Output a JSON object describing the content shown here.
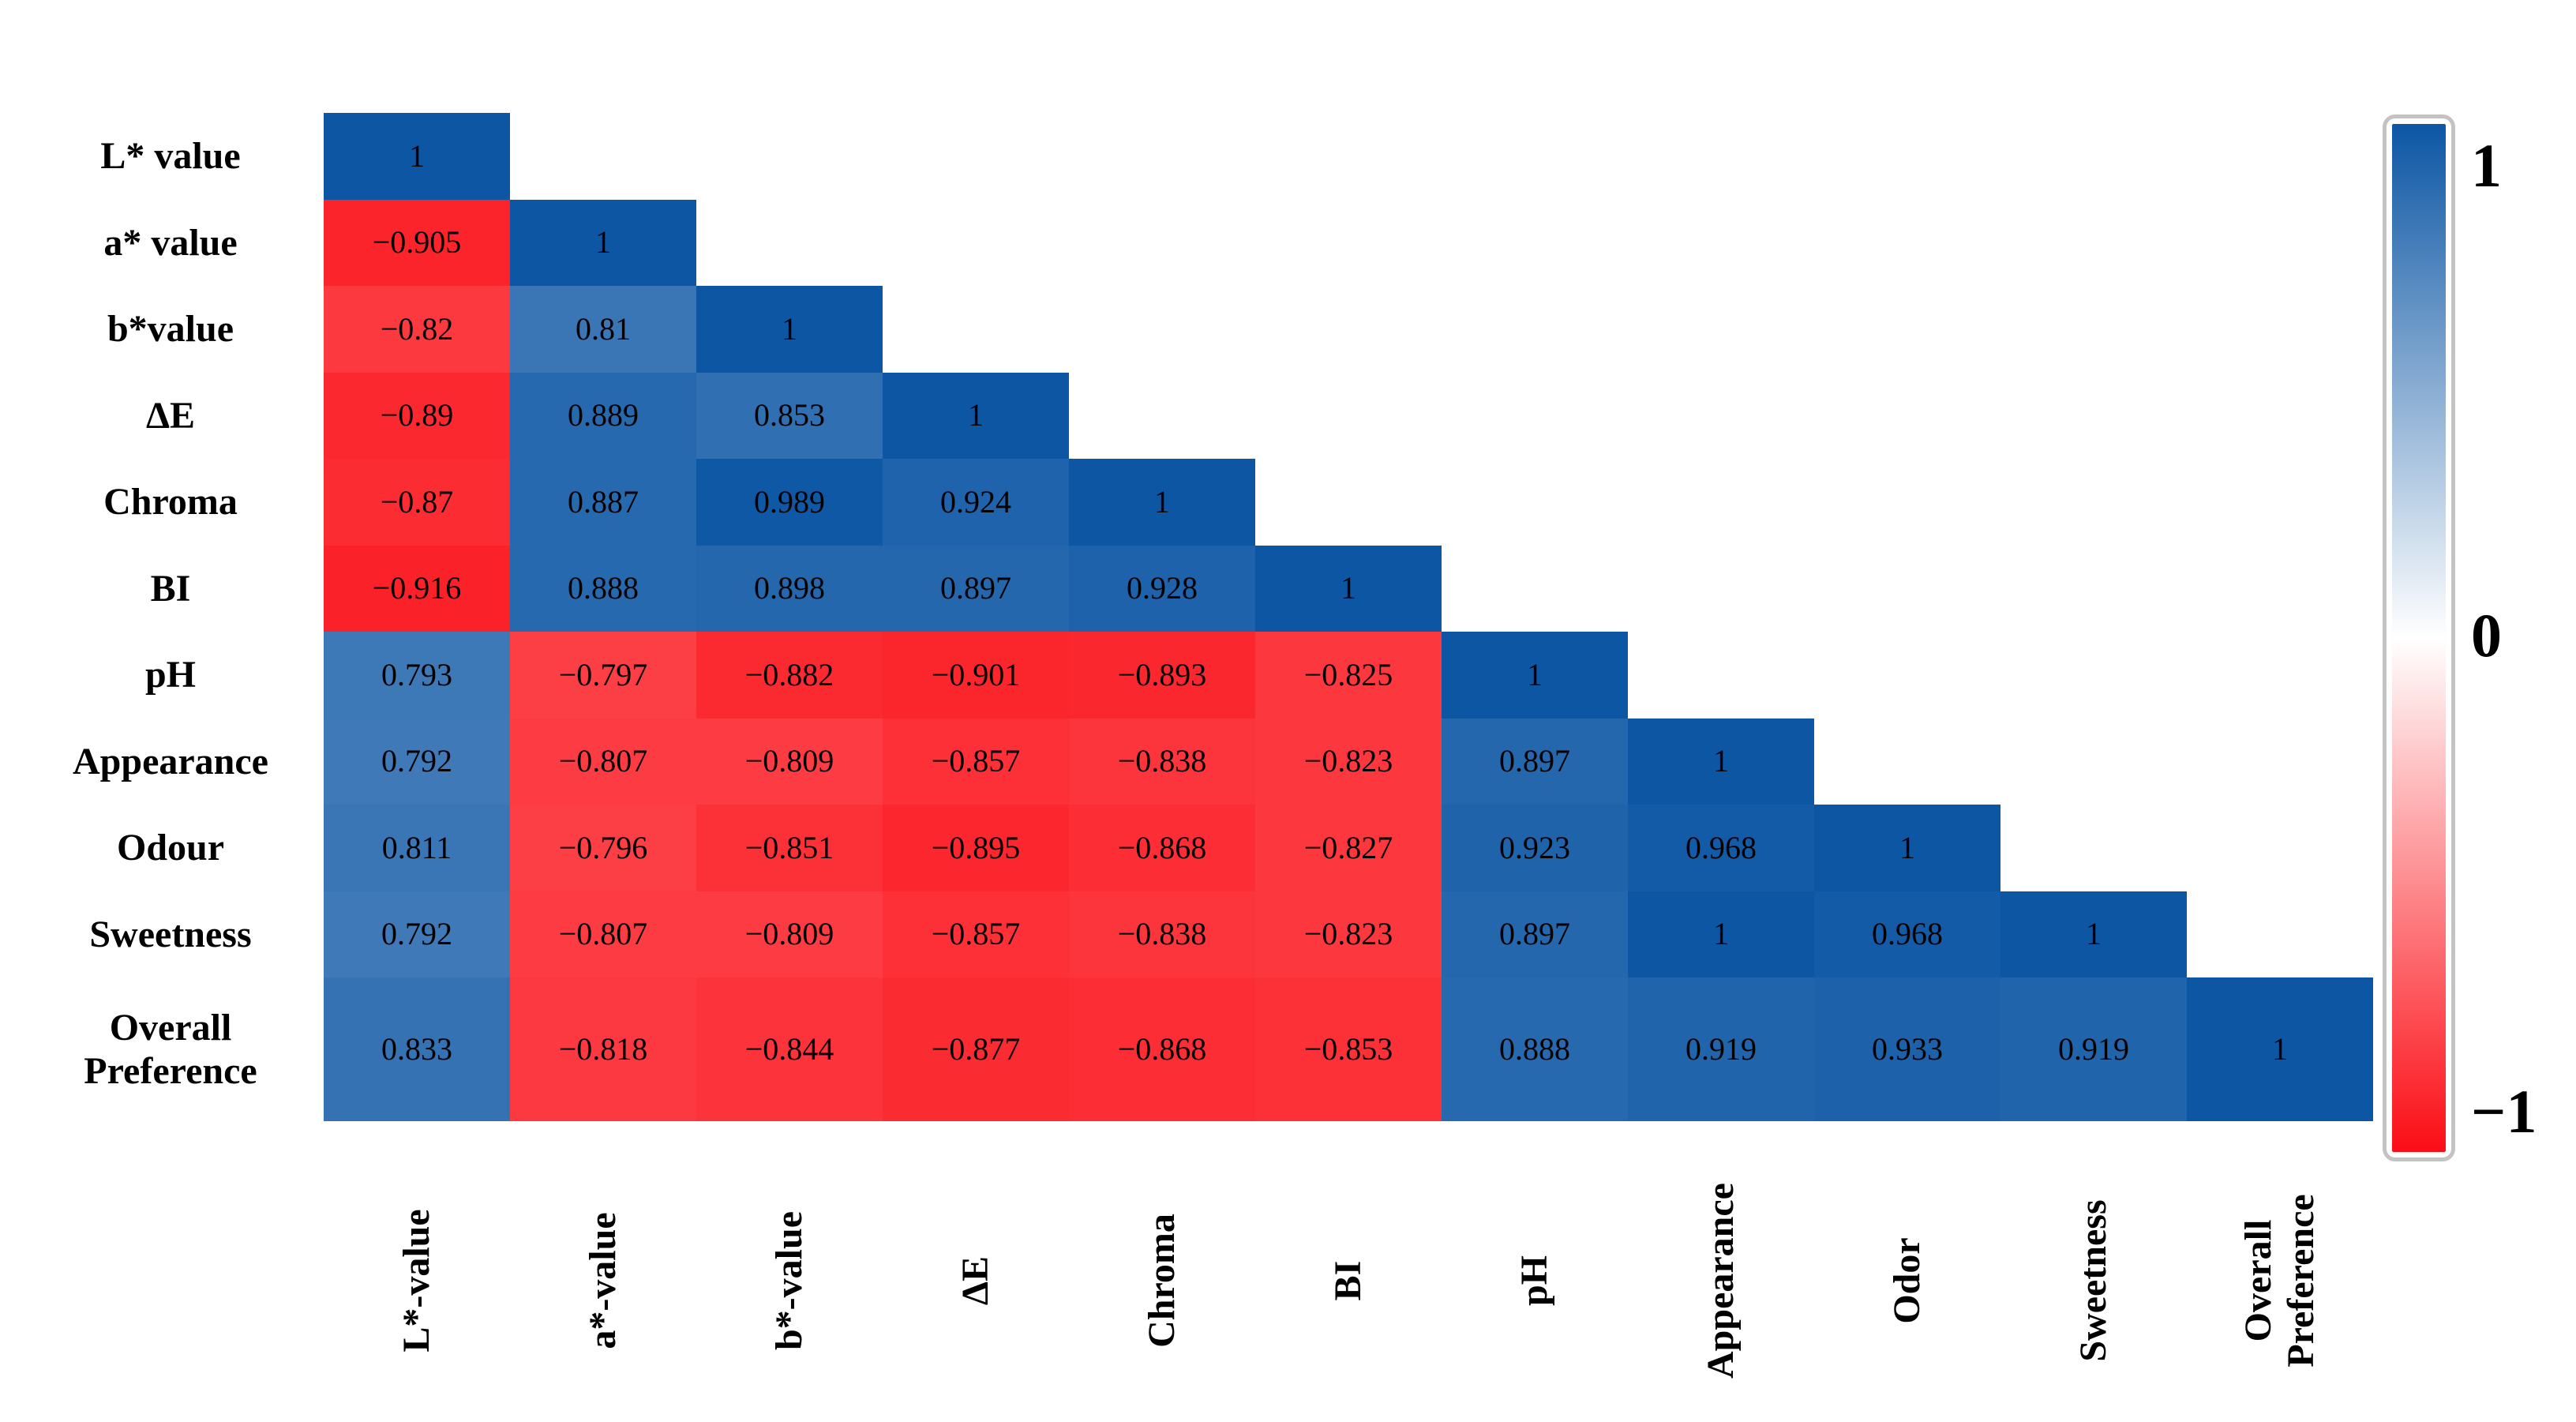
{
  "chart_data": {
    "type": "heatmap",
    "subtype": "lower-triangular correlation matrix",
    "row_labels": [
      "L* value",
      "a* value",
      "b*value",
      "ΔE",
      "Chroma",
      "BI",
      "pH",
      "Appearance",
      "Odour",
      "Sweetness",
      "Overall\nPreference"
    ],
    "col_labels": [
      "L*-value",
      "a*-value",
      "b*-value",
      "ΔE",
      "Chroma",
      "BI",
      "pH",
      "Appearance",
      "Odor",
      "Sweetness",
      "Overall\nPreference"
    ],
    "matrix": [
      [
        1
      ],
      [
        -0.905,
        1
      ],
      [
        -0.82,
        0.81,
        1
      ],
      [
        -0.89,
        0.889,
        0.853,
        1
      ],
      [
        -0.87,
        0.887,
        0.989,
        0.924,
        1
      ],
      [
        -0.916,
        0.888,
        0.898,
        0.897,
        0.928,
        1
      ],
      [
        0.793,
        -0.797,
        -0.882,
        -0.901,
        -0.893,
        -0.825,
        1
      ],
      [
        0.792,
        -0.807,
        -0.809,
        -0.857,
        -0.838,
        -0.823,
        0.897,
        1
      ],
      [
        0.811,
        -0.796,
        -0.851,
        -0.895,
        -0.868,
        -0.827,
        0.923,
        0.968,
        1
      ],
      [
        0.792,
        -0.807,
        -0.809,
        -0.857,
        -0.838,
        -0.823,
        0.897,
        1,
        0.968,
        1
      ],
      [
        0.833,
        -0.818,
        -0.844,
        -0.877,
        -0.868,
        -0.853,
        0.888,
        0.919,
        0.933,
        0.919,
        1
      ]
    ],
    "value_text_color": "#000000",
    "colormap": {
      "positive_end": "#0C56A4",
      "zero": "#FFFFFF",
      "negative_end": "#FB0D15"
    },
    "colorbar": {
      "position": "right",
      "range": [
        -1,
        1
      ],
      "ticks": [
        "1",
        "0",
        "−1"
      ]
    },
    "grid": false,
    "title": "",
    "xlabel": "",
    "ylabel": ""
  }
}
